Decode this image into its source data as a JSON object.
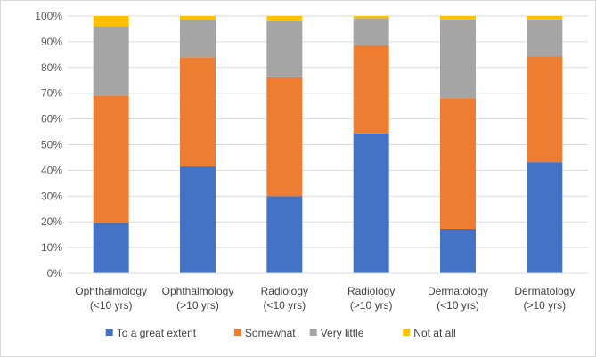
{
  "chart_data": {
    "type": "bar",
    "stacked": true,
    "percent": true,
    "categories": [
      [
        "Ophthalmology",
        "(<10 yrs)"
      ],
      [
        "Ophthalmology",
        "(>10 yrs)"
      ],
      [
        "Radiology",
        "(<10 yrs)"
      ],
      [
        "Radiology",
        "(>10 yrs)"
      ],
      [
        "Dermatology",
        "(<10 yrs)"
      ],
      [
        "Dermatology",
        "(>10 yrs)"
      ]
    ],
    "series": [
      {
        "name": "To a great extent",
        "color": "#4472c4",
        "values": [
          19.6,
          41.5,
          30.0,
          54.4,
          17.3,
          43.2
        ]
      },
      {
        "name": "Somewhat",
        "color": "#ed7d31",
        "values": [
          49.5,
          42.5,
          46.2,
          34.2,
          50.8,
          41.2
        ]
      },
      {
        "name": "Very little",
        "color": "#a5a5a5",
        "values": [
          26.9,
          14.5,
          21.8,
          10.6,
          30.6,
          14.3
        ]
      },
      {
        "name": "Not at all",
        "color": "#ffc000",
        "values": [
          4.0,
          1.5,
          2.0,
          0.8,
          1.3,
          1.3
        ]
      }
    ],
    "yticks": [
      "0%",
      "10%",
      "20%",
      "30%",
      "40%",
      "50%",
      "60%",
      "70%",
      "80%",
      "90%",
      "100%"
    ],
    "ylim": [
      0,
      100
    ],
    "grid": true,
    "legend_position": "bottom"
  }
}
